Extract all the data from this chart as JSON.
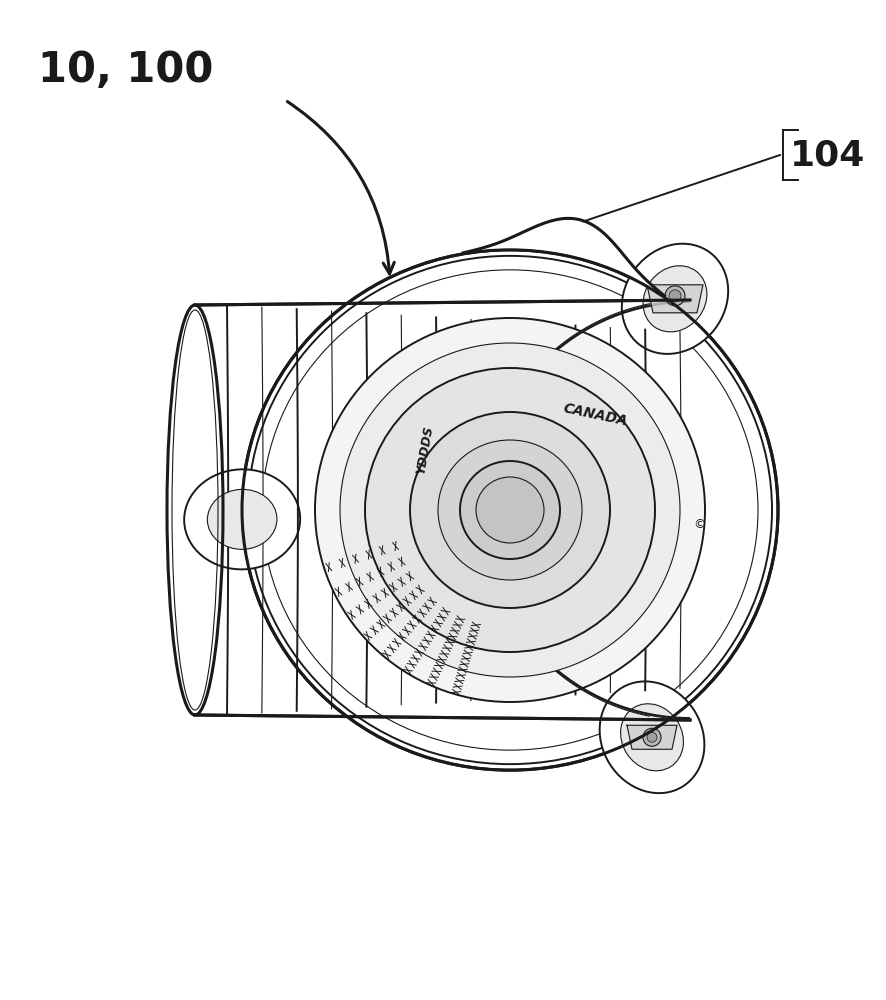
{
  "background_color": "#ffffff",
  "label_10_100": "10, 100",
  "label_104": "104",
  "fig_width": 8.87,
  "fig_height": 10.0,
  "lc": "#1a1a1a",
  "lw_thin": 0.8,
  "lw_med": 1.4,
  "lw_thick": 2.2,
  "lw_xthick": 3.0
}
